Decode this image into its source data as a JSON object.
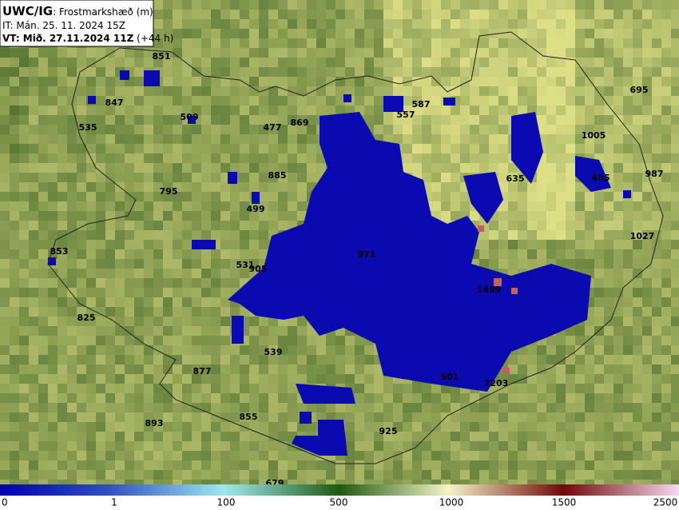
{
  "header": {
    "product": "UWC/IG",
    "field": ": Frostmarkshæð (m)",
    "issue_time": "IT: Mán. 25. 11. 2024 15Z",
    "valid_time": "VT: Mið. 27.11.2024 11Z",
    "lead_time": " (+44 h)"
  },
  "spot_labels": [
    851,
    847,
    535,
    509,
    477,
    869,
    587,
    557,
    695,
    1005,
    885,
    795,
    499,
    635,
    485,
    987,
    1027,
    853,
    971,
    531,
    905,
    1499,
    825,
    539,
    877,
    501,
    2203,
    893,
    855,
    925,
    679
  ],
  "colorbar": {
    "ticks": [
      0,
      1,
      100,
      500,
      1000,
      1500,
      2500
    ]
  }
}
